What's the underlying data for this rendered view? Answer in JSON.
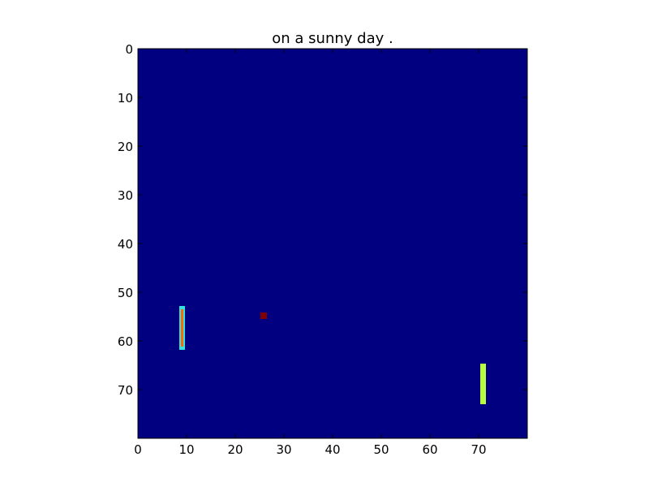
{
  "title": "on a sunny day .",
  "colors": {
    "background": "#000080",
    "frame": "#000000",
    "left_paddle_body": "#ff6a00",
    "left_paddle_edge": "#35e0e0",
    "ball": "#800000",
    "right_paddle": "#b7ff40"
  },
  "game": {
    "grid_size": [
      80,
      80
    ],
    "left_paddle": {
      "x": 9,
      "y_top": 53,
      "y_bottom": 61
    },
    "ball": {
      "x": 26,
      "y": 55
    },
    "right_paddle": {
      "x": 71,
      "y_top": 65,
      "y_bottom": 72
    }
  },
  "axes": {
    "x_ticks": [
      "0",
      "10",
      "20",
      "30",
      "40",
      "50",
      "60",
      "70"
    ],
    "y_ticks": [
      "0",
      "10",
      "20",
      "30",
      "40",
      "50",
      "60",
      "70"
    ]
  }
}
